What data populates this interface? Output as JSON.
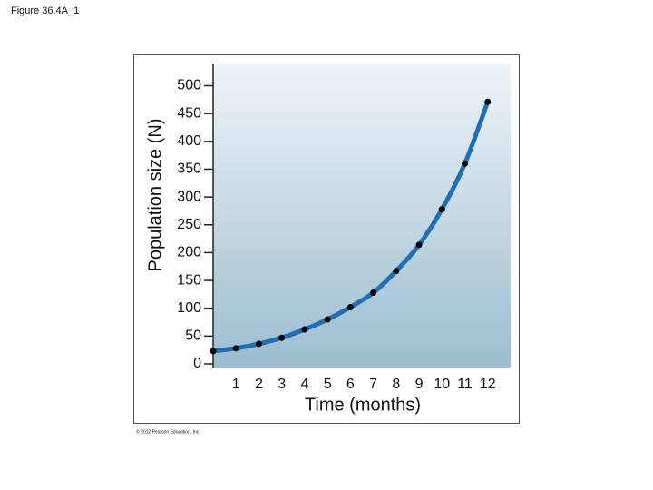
{
  "figure_label": "Figure 36.4A_1",
  "chart_data": {
    "type": "line",
    "x_label": "Time (months)",
    "y_label": "Population size (N)",
    "credit": "© 2012 Pearson Education, Inc.",
    "x": [
      0,
      1,
      2,
      3,
      4,
      5,
      6,
      7,
      8,
      9,
      10,
      11,
      12
    ],
    "series": [
      {
        "color": "#1f6fb4",
        "values": [
          23,
          28,
          36,
          47,
          62,
          80,
          102,
          128,
          167,
          214,
          278,
          360,
          471
        ]
      }
    ],
    "xlim": [
      0,
      13
    ],
    "xticks": [
      1,
      2,
      3,
      4,
      5,
      6,
      7,
      8,
      9,
      10,
      11,
      12
    ],
    "ylim": [
      0,
      540
    ],
    "yticks": [
      0,
      50,
      100,
      150,
      200,
      250,
      300,
      350,
      400,
      450,
      500
    ]
  }
}
